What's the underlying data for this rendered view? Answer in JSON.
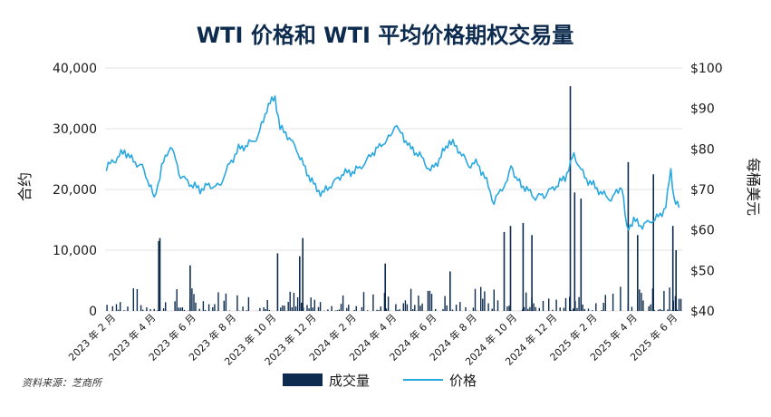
{
  "chart_data": {
    "type": "bar",
    "title": "WTI 价格和 WTI 平均价格期权交易量",
    "y_left_label": "合约",
    "y_right_label": "每桶美元",
    "source": "资料来源：芝商所",
    "y_left_ticks": [
      "40,000",
      "30,000",
      "20,000",
      "10,000",
      "0"
    ],
    "y_right_ticks": [
      "$100",
      "$90",
      "$80",
      "$70",
      "$60",
      "$50",
      "$40"
    ],
    "y_left_range": [
      0,
      40000
    ],
    "y_right_range": [
      40,
      100
    ],
    "x_tick_labels": [
      "2023 年 2 月",
      "2023 年 4 月",
      "2023 年 6 月",
      "2023 年 8 月",
      "2023 年 10 月",
      "2023 年 12 月",
      "2024 年 2 月",
      "2024 年 4 月",
      "2024 年 6 月",
      "2024 年 8 月",
      "2024 年 10 月",
      "2024 年 12 月",
      "2025 年 2 月",
      "2025 年 4 月",
      "2025 年 6 月"
    ],
    "legend": {
      "position": "bottom-center",
      "volume_label": "成交量",
      "price_label": "价格"
    },
    "colors": {
      "volume": "#0d2b4e",
      "price": "#29a8e0",
      "grid": "#e3e3e3",
      "title": "#0d2b4e"
    },
    "grid": true,
    "price_series": {
      "name": "价格",
      "dates": [
        "2023-01-03",
        "2023-01-15",
        "2023-02-01",
        "2023-02-15",
        "2023-03-01",
        "2023-03-15",
        "2023-03-20",
        "2023-04-01",
        "2023-04-15",
        "2023-05-01",
        "2023-05-15",
        "2023-06-01",
        "2023-06-15",
        "2023-07-01",
        "2023-07-15",
        "2023-08-01",
        "2023-08-15",
        "2023-09-01",
        "2023-09-15",
        "2023-09-28",
        "2023-10-06",
        "2023-10-15",
        "2023-11-01",
        "2023-11-15",
        "2023-12-01",
        "2023-12-12",
        "2024-01-01",
        "2024-01-15",
        "2024-02-01",
        "2024-02-15",
        "2024-03-01",
        "2024-03-15",
        "2024-04-01",
        "2024-04-05",
        "2024-04-15",
        "2024-05-01",
        "2024-05-15",
        "2024-06-01",
        "2024-06-15",
        "2024-07-01",
        "2024-07-15",
        "2024-08-01",
        "2024-08-15",
        "2024-09-01",
        "2024-09-10",
        "2024-09-20",
        "2024-10-01",
        "2024-10-07",
        "2024-10-15",
        "2024-11-01",
        "2024-11-15",
        "2024-12-01",
        "2024-12-15",
        "2025-01-01",
        "2025-01-15",
        "2025-02-01",
        "2025-02-15",
        "2025-03-01",
        "2025-03-15",
        "2025-04-01",
        "2025-04-09",
        "2025-04-20",
        "2025-05-01",
        "2025-05-15",
        "2025-06-01",
        "2025-06-10",
        "2025-06-18",
        "2025-06-23",
        "2025-07-01"
      ],
      "values": [
        75.5,
        77,
        79.5,
        77,
        75.5,
        70.5,
        67.5,
        75.5,
        81,
        73.5,
        71.5,
        70,
        71,
        70.5,
        75.5,
        80,
        81,
        83,
        90,
        93,
        85,
        84,
        80,
        75,
        70.5,
        69,
        72,
        74,
        74.5,
        76,
        79,
        81,
        83.5,
        86.5,
        84,
        80,
        78.5,
        74.5,
        77.5,
        82,
        80,
        76,
        76.5,
        71,
        66.5,
        70,
        71.5,
        76.5,
        72.5,
        70,
        68,
        69,
        70.5,
        73,
        78.5,
        73,
        71,
        69,
        67.5,
        71,
        60,
        62.5,
        61,
        62,
        63.5,
        66,
        74.5,
        68,
        65.5
      ]
    },
    "volume_series": {
      "name": "成交量",
      "spikes": [
        {
          "date": "2023-03-28",
          "value": 12000
        },
        {
          "date": "2023-03-26",
          "value": 11500
        },
        {
          "date": "2023-05-15",
          "value": 7500
        },
        {
          "date": "2023-10-01",
          "value": 9500
        },
        {
          "date": "2023-11-10",
          "value": 12000
        },
        {
          "date": "2023-11-05",
          "value": 9000
        },
        {
          "date": "2024-03-20",
          "value": 7800
        },
        {
          "date": "2024-07-01",
          "value": 6500
        },
        {
          "date": "2024-09-25",
          "value": 13000
        },
        {
          "date": "2024-10-05",
          "value": 14000
        },
        {
          "date": "2024-10-25",
          "value": 14500
        },
        {
          "date": "2024-11-08",
          "value": 12500
        },
        {
          "date": "2025-01-08",
          "value": 37000
        },
        {
          "date": "2025-01-15",
          "value": 19500
        },
        {
          "date": "2025-01-25",
          "value": 18500
        },
        {
          "date": "2025-04-10",
          "value": 24500
        },
        {
          "date": "2025-04-25",
          "value": 12500
        },
        {
          "date": "2025-05-20",
          "value": 22500
        },
        {
          "date": "2025-06-20",
          "value": 14000
        },
        {
          "date": "2025-06-25",
          "value": 10000
        }
      ],
      "baseline_range": [
        0,
        4000
      ]
    }
  }
}
